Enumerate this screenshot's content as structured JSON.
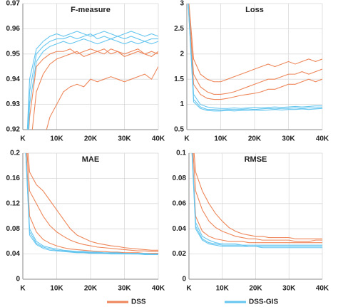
{
  "chart_data": [
    {
      "type": "line",
      "title": "F-measure",
      "x": [
        0,
        2000,
        4000,
        6000,
        8000,
        10000,
        12000,
        14000,
        16000,
        18000,
        20000,
        22000,
        24000,
        26000,
        28000,
        30000,
        32000,
        34000,
        36000,
        38000,
        40000
      ],
      "xlim": [
        0,
        40000
      ],
      "xticks": [
        {
          "value": 0,
          "label": "K"
        },
        {
          "value": 10000,
          "label": "10K"
        },
        {
          "value": 20000,
          "label": "20K"
        },
        {
          "value": 30000,
          "label": "30K"
        },
        {
          "value": 40000,
          "label": "40K"
        }
      ],
      "ylim": [
        0.92,
        0.97
      ],
      "yticks": [
        0.92,
        0.93,
        0.94,
        0.95,
        0.96,
        0.97
      ],
      "grid": true,
      "series": [
        {
          "name": "DSS",
          "color": "#ee8659",
          "values": [
            [
              0.88,
              0.925,
              0.945,
              0.948,
              0.95,
              0.951,
              0.951,
              0.952,
              0.95,
              0.951,
              0.952,
              0.951,
              0.95,
              0.952,
              0.951,
              0.95,
              0.951,
              0.952,
              0.95,
              0.951,
              0.95
            ],
            [
              0.87,
              0.91,
              0.935,
              0.942,
              0.946,
              0.948,
              0.949,
              0.95,
              0.951,
              0.949,
              0.95,
              0.951,
              0.952,
              0.95,
              0.951,
              0.949,
              0.95,
              0.951,
              0.95,
              0.949,
              0.951
            ],
            [
              0.85,
              0.88,
              0.9,
              0.915,
              0.925,
              0.93,
              0.935,
              0.937,
              0.938,
              0.937,
              0.94,
              0.939,
              0.94,
              0.941,
              0.94,
              0.939,
              0.94,
              0.941,
              0.942,
              0.94,
              0.945
            ]
          ]
        },
        {
          "name": "DSS-GIS",
          "color": "#66c6ef",
          "values": [
            [
              0.88,
              0.94,
              0.952,
              0.955,
              0.957,
              0.958,
              0.957,
              0.958,
              0.959,
              0.958,
              0.957,
              0.958,
              0.959,
              0.958,
              0.957,
              0.958,
              0.959,
              0.958,
              0.957,
              0.958,
              0.957
            ],
            [
              0.87,
              0.935,
              0.95,
              0.953,
              0.955,
              0.956,
              0.956,
              0.957,
              0.956,
              0.957,
              0.958,
              0.956,
              0.957,
              0.956,
              0.957,
              0.956,
              0.957,
              0.956,
              0.955,
              0.956,
              0.956
            ],
            [
              0.86,
              0.93,
              0.947,
              0.951,
              0.953,
              0.954,
              0.955,
              0.954,
              0.955,
              0.956,
              0.955,
              0.954,
              0.955,
              0.956,
              0.955,
              0.954,
              0.955,
              0.954,
              0.955,
              0.954,
              0.955
            ]
          ]
        }
      ]
    },
    {
      "type": "line",
      "title": "Loss",
      "x": [
        0,
        2000,
        4000,
        6000,
        8000,
        10000,
        12000,
        14000,
        16000,
        18000,
        20000,
        22000,
        24000,
        26000,
        28000,
        30000,
        32000,
        34000,
        36000,
        38000,
        40000
      ],
      "xlim": [
        0,
        40000
      ],
      "xticks": [
        {
          "value": 0,
          "label": "K"
        },
        {
          "value": 10000,
          "label": "10K"
        },
        {
          "value": 20000,
          "label": "20K"
        },
        {
          "value": 30000,
          "label": "30K"
        },
        {
          "value": 40000,
          "label": "40K"
        }
      ],
      "ylim": [
        0.5,
        3
      ],
      "yticks": [
        0.5,
        1,
        1.5,
        2,
        2.5,
        3
      ],
      "grid": true,
      "series": [
        {
          "name": "DSS",
          "color": "#ee8659",
          "values": [
            [
              3.5,
              1.9,
              1.6,
              1.5,
              1.45,
              1.45,
              1.5,
              1.55,
              1.6,
              1.65,
              1.7,
              1.75,
              1.8,
              1.75,
              1.8,
              1.85,
              1.8,
              1.85,
              1.9,
              1.85,
              1.9
            ],
            [
              3.5,
              1.6,
              1.35,
              1.25,
              1.2,
              1.2,
              1.22,
              1.25,
              1.3,
              1.35,
              1.4,
              1.45,
              1.5,
              1.5,
              1.55,
              1.6,
              1.6,
              1.65,
              1.6,
              1.65,
              1.7
            ],
            [
              3.5,
              1.4,
              1.2,
              1.12,
              1.1,
              1.1,
              1.12,
              1.15,
              1.18,
              1.2,
              1.22,
              1.25,
              1.3,
              1.3,
              1.35,
              1.4,
              1.4,
              1.45,
              1.5,
              1.45,
              1.5
            ]
          ]
        },
        {
          "name": "DSS-GIS",
          "color": "#66c6ef",
          "values": [
            [
              3.5,
              1.2,
              1.0,
              0.95,
              0.93,
              0.92,
              0.92,
              0.93,
              0.92,
              0.93,
              0.94,
              0.93,
              0.94,
              0.95,
              0.94,
              0.95,
              0.96,
              0.95,
              0.96,
              0.97,
              0.97
            ],
            [
              3.5,
              1.1,
              0.95,
              0.9,
              0.9,
              0.89,
              0.9,
              0.9,
              0.9,
              0.91,
              0.9,
              0.91,
              0.92,
              0.91,
              0.92,
              0.92,
              0.93,
              0.92,
              0.93,
              0.93,
              0.94
            ],
            [
              3.5,
              1.05,
              0.92,
              0.88,
              0.87,
              0.87,
              0.88,
              0.87,
              0.88,
              0.88,
              0.89,
              0.88,
              0.89,
              0.9,
              0.89,
              0.9,
              0.9,
              0.91,
              0.9,
              0.91,
              0.92
            ]
          ]
        }
      ]
    },
    {
      "type": "line",
      "title": "MAE",
      "x": [
        0,
        2000,
        4000,
        6000,
        8000,
        10000,
        12000,
        14000,
        16000,
        18000,
        20000,
        22000,
        24000,
        26000,
        28000,
        30000,
        32000,
        34000,
        36000,
        38000,
        40000
      ],
      "xlim": [
        0,
        40000
      ],
      "xticks": [
        {
          "value": 0,
          "label": "K"
        },
        {
          "value": 10000,
          "label": "10K"
        },
        {
          "value": 20000,
          "label": "20K"
        },
        {
          "value": 30000,
          "label": "30K"
        },
        {
          "value": 40000,
          "label": "40K"
        }
      ],
      "ylim": [
        0,
        0.2
      ],
      "yticks": [
        0,
        0.04,
        0.08,
        0.12,
        0.16,
        0.2
      ],
      "grid": true,
      "series": [
        {
          "name": "DSS",
          "color": "#ee8659",
          "values": [
            [
              0.3,
              0.17,
              0.15,
              0.14,
              0.125,
              0.11,
              0.095,
              0.08,
              0.07,
              0.065,
              0.06,
              0.057,
              0.055,
              0.053,
              0.052,
              0.05,
              0.049,
              0.048,
              0.047,
              0.046,
              0.046
            ],
            [
              0.3,
              0.14,
              0.12,
              0.1,
              0.085,
              0.075,
              0.068,
              0.062,
              0.058,
              0.055,
              0.053,
              0.051,
              0.05,
              0.049,
              0.048,
              0.047,
              0.046,
              0.045,
              0.045,
              0.044,
              0.044
            ],
            [
              0.3,
              0.1,
              0.075,
              0.063,
              0.057,
              0.053,
              0.05,
              0.048,
              0.047,
              0.046,
              0.045,
              0.044,
              0.044,
              0.043,
              0.043,
              0.042,
              0.042,
              0.042,
              0.041,
              0.041,
              0.041
            ]
          ]
        },
        {
          "name": "DSS-GIS",
          "color": "#66c6ef",
          "values": [
            [
              0.3,
              0.08,
              0.06,
              0.053,
              0.05,
              0.048,
              0.046,
              0.045,
              0.044,
              0.044,
              0.043,
              0.043,
              0.042,
              0.042,
              0.042,
              0.041,
              0.041,
              0.041,
              0.041,
              0.04,
              0.04
            ],
            [
              0.3,
              0.075,
              0.057,
              0.051,
              0.048,
              0.046,
              0.045,
              0.044,
              0.043,
              0.043,
              0.042,
              0.042,
              0.041,
              0.041,
              0.041,
              0.041,
              0.04,
              0.04,
              0.04,
              0.04,
              0.04
            ],
            [
              0.3,
              0.07,
              0.055,
              0.049,
              0.046,
              0.045,
              0.044,
              0.043,
              0.042,
              0.042,
              0.041,
              0.041,
              0.041,
              0.04,
              0.04,
              0.04,
              0.04,
              0.04,
              0.039,
              0.039,
              0.039
            ]
          ]
        }
      ]
    },
    {
      "type": "line",
      "title": "RMSE",
      "x": [
        0,
        2000,
        4000,
        6000,
        8000,
        10000,
        12000,
        14000,
        16000,
        18000,
        20000,
        22000,
        24000,
        26000,
        28000,
        30000,
        32000,
        34000,
        36000,
        38000,
        40000
      ],
      "xlim": [
        0,
        40000
      ],
      "xticks": [
        {
          "value": 0,
          "label": "K"
        },
        {
          "value": 10000,
          "label": "10K"
        },
        {
          "value": 20000,
          "label": "20K"
        },
        {
          "value": 30000,
          "label": "30K"
        },
        {
          "value": 40000,
          "label": "40K"
        }
      ],
      "ylim": [
        0,
        0.1
      ],
      "yticks": [
        0,
        0.02,
        0.04,
        0.06,
        0.08,
        0.1
      ],
      "grid": true,
      "series": [
        {
          "name": "DSS",
          "color": "#ee8659",
          "values": [
            [
              0.15,
              0.085,
              0.07,
              0.06,
              0.052,
              0.046,
              0.041,
              0.038,
              0.036,
              0.035,
              0.034,
              0.034,
              0.033,
              0.033,
              0.033,
              0.033,
              0.032,
              0.032,
              0.032,
              0.032,
              0.032
            ],
            [
              0.15,
              0.07,
              0.055,
              0.046,
              0.041,
              0.038,
              0.036,
              0.034,
              0.033,
              0.032,
              0.032,
              0.031,
              0.031,
              0.031,
              0.031,
              0.031,
              0.03,
              0.03,
              0.03,
              0.031,
              0.031
            ],
            [
              0.15,
              0.05,
              0.038,
              0.034,
              0.032,
              0.031,
              0.03,
              0.03,
              0.03,
              0.029,
              0.029,
              0.029,
              0.029,
              0.029,
              0.029,
              0.029,
              0.029,
              0.029,
              0.029,
              0.029,
              0.029
            ]
          ]
        },
        {
          "name": "DSS-GIS",
          "color": "#66c6ef",
          "values": [
            [
              0.15,
              0.045,
              0.034,
              0.031,
              0.029,
              0.028,
              0.028,
              0.028,
              0.027,
              0.027,
              0.027,
              0.027,
              0.027,
              0.027,
              0.027,
              0.027,
              0.027,
              0.027,
              0.027,
              0.027,
              0.027
            ],
            [
              0.15,
              0.042,
              0.032,
              0.029,
              0.028,
              0.027,
              0.027,
              0.027,
              0.027,
              0.026,
              0.026,
              0.026,
              0.026,
              0.026,
              0.026,
              0.026,
              0.026,
              0.026,
              0.026,
              0.026,
              0.026
            ],
            [
              0.15,
              0.04,
              0.031,
              0.028,
              0.027,
              0.026,
              0.026,
              0.026,
              0.026,
              0.026,
              0.026,
              0.025,
              0.025,
              0.025,
              0.025,
              0.025,
              0.025,
              0.025,
              0.025,
              0.025,
              0.025
            ]
          ]
        }
      ]
    }
  ]
}
